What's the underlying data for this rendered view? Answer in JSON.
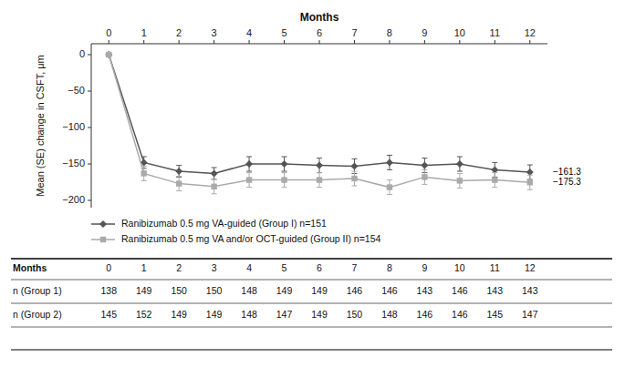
{
  "chart_data": {
    "type": "line",
    "xlabel": "Months",
    "ylabel": "Mean (SE) change in CSFT, μm",
    "x": [
      0,
      1,
      2,
      3,
      4,
      5,
      6,
      7,
      8,
      9,
      10,
      11,
      12
    ],
    "xlim": [
      -0.5,
      12.5
    ],
    "xticks": [
      0,
      1,
      2,
      3,
      4,
      5,
      6,
      7,
      8,
      9,
      10,
      11,
      12
    ],
    "ylim": [
      -210,
      15
    ],
    "yticks": [
      0,
      {
        "value": -50,
        "label": "−50"
      },
      {
        "value": -100,
        "label": "−100"
      },
      {
        "value": -150,
        "label": "−150"
      },
      {
        "value": -200,
        "label": "−200"
      }
    ],
    "grid": false,
    "legend": "bottom",
    "series": [
      {
        "name": "Ranibizumab 0.5 mg VA-guided (Group I) n=151",
        "color": "#555555",
        "marker": "diamond",
        "values": [
          0,
          -148,
          -160,
          -163,
          -150,
          -150,
          -152,
          -153,
          -148,
          -152,
          -150,
          -158,
          -161.3
        ],
        "errors": [
          0,
          8,
          8,
          8,
          10,
          10,
          10,
          10,
          10,
          10,
          10,
          10,
          10
        ]
      },
      {
        "name": "Ranibizumab 0.5 mg VA and/or OCT-guided (Group II) n=154",
        "color": "#aaaaaa",
        "marker": "square",
        "values": [
          0,
          -163,
          -177,
          -181,
          -172,
          -172,
          -172,
          -170,
          -182,
          -168,
          -173,
          -172,
          -175.3
        ],
        "errors": [
          0,
          10,
          10,
          10,
          10,
          10,
          10,
          10,
          10,
          10,
          10,
          10,
          10
        ]
      }
    ],
    "annotations": [
      {
        "text": "−161.3",
        "x": 12,
        "y": -161.3
      },
      {
        "text": "−175.3",
        "x": 12,
        "y": -175.3
      }
    ],
    "table": {
      "row_labels": [
        "Months",
        "n (Group 1)",
        "n (Group 2)"
      ],
      "months": [
        0,
        1,
        2,
        3,
        4,
        5,
        6,
        7,
        8,
        9,
        10,
        11,
        12
      ],
      "group1": [
        138,
        149,
        150,
        150,
        148,
        149,
        149,
        146,
        146,
        143,
        146,
        143,
        143
      ],
      "group2": [
        145,
        152,
        149,
        149,
        148,
        147,
        149,
        150,
        148,
        146,
        146,
        145,
        147
      ]
    }
  }
}
